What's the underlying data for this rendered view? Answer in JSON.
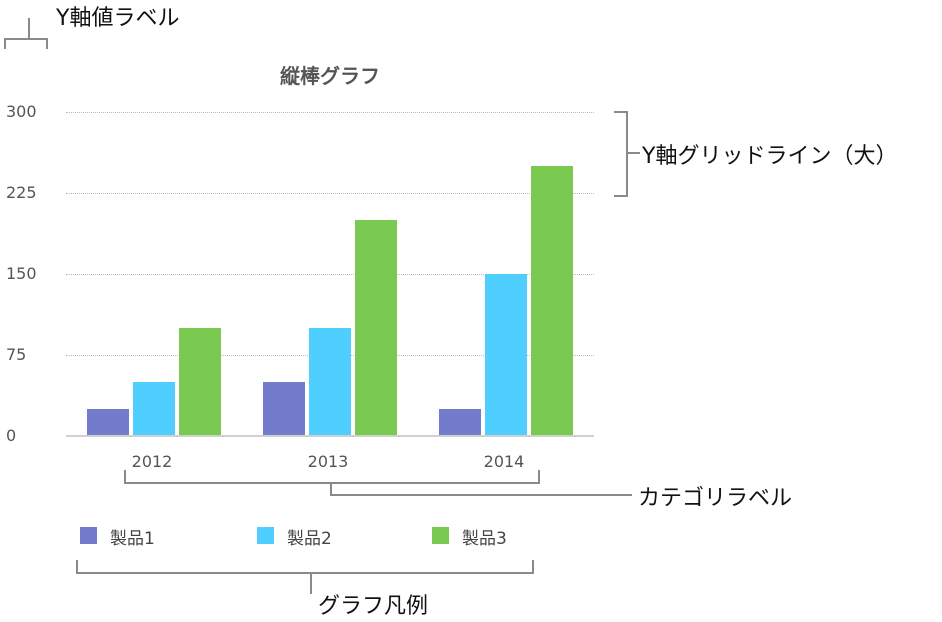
{
  "chart_data": {
    "type": "bar",
    "title": "縦棒グラフ",
    "categories": [
      "2012",
      "2013",
      "2014"
    ],
    "series": [
      {
        "name": "製品1",
        "color": "#737ccc",
        "values": [
          25,
          50,
          25
        ]
      },
      {
        "name": "製品2",
        "color": "#4ecfff",
        "values": [
          50,
          100,
          150
        ]
      },
      {
        "name": "製品3",
        "color": "#7aca51",
        "values": [
          100,
          200,
          250
        ]
      }
    ],
    "xlabel": "",
    "ylabel": "",
    "ylim": [
      0,
      300
    ],
    "yticks": [
      "0",
      "75",
      "150",
      "225",
      "300"
    ],
    "grid": true,
    "legend_position": "bottom"
  },
  "annotations": {
    "y_value_label": "Y軸値ラベル",
    "y_gridline": "Y軸グリッドライン（大）",
    "category_label": "カテゴリラベル",
    "legend": "グラフ凡例"
  }
}
